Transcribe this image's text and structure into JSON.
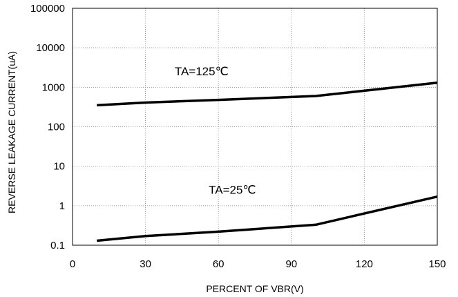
{
  "chart_data": {
    "type": "line",
    "xlabel": "PERCENT OF VBR(V)",
    "ylabel": "REVERSE LEAKAGE CURRENT(uA)",
    "xlim": [
      0,
      150
    ],
    "ylim": [
      0.1,
      100000
    ],
    "yscale": "log",
    "grid": true,
    "x_ticks": [
      "0",
      "30",
      "60",
      "90",
      "120",
      "150"
    ],
    "y_ticks": [
      "0.1",
      "1",
      "10",
      "100",
      "1000",
      "10000",
      "100000"
    ],
    "series": [
      {
        "x": [
          10,
          30,
          60,
          100,
          150
        ],
        "y": [
          350,
          410,
          480,
          600,
          1300
        ]
      },
      {
        "x": [
          10,
          30,
          60,
          100,
          150
        ],
        "y": [
          0.13,
          0.17,
          0.22,
          0.33,
          1.7
        ]
      }
    ],
    "annotations": [
      {
        "text": "TA=125℃",
        "x": 42,
        "y": 2000
      },
      {
        "text": "TA=25℃",
        "x": 56,
        "y": 2
      }
    ]
  }
}
